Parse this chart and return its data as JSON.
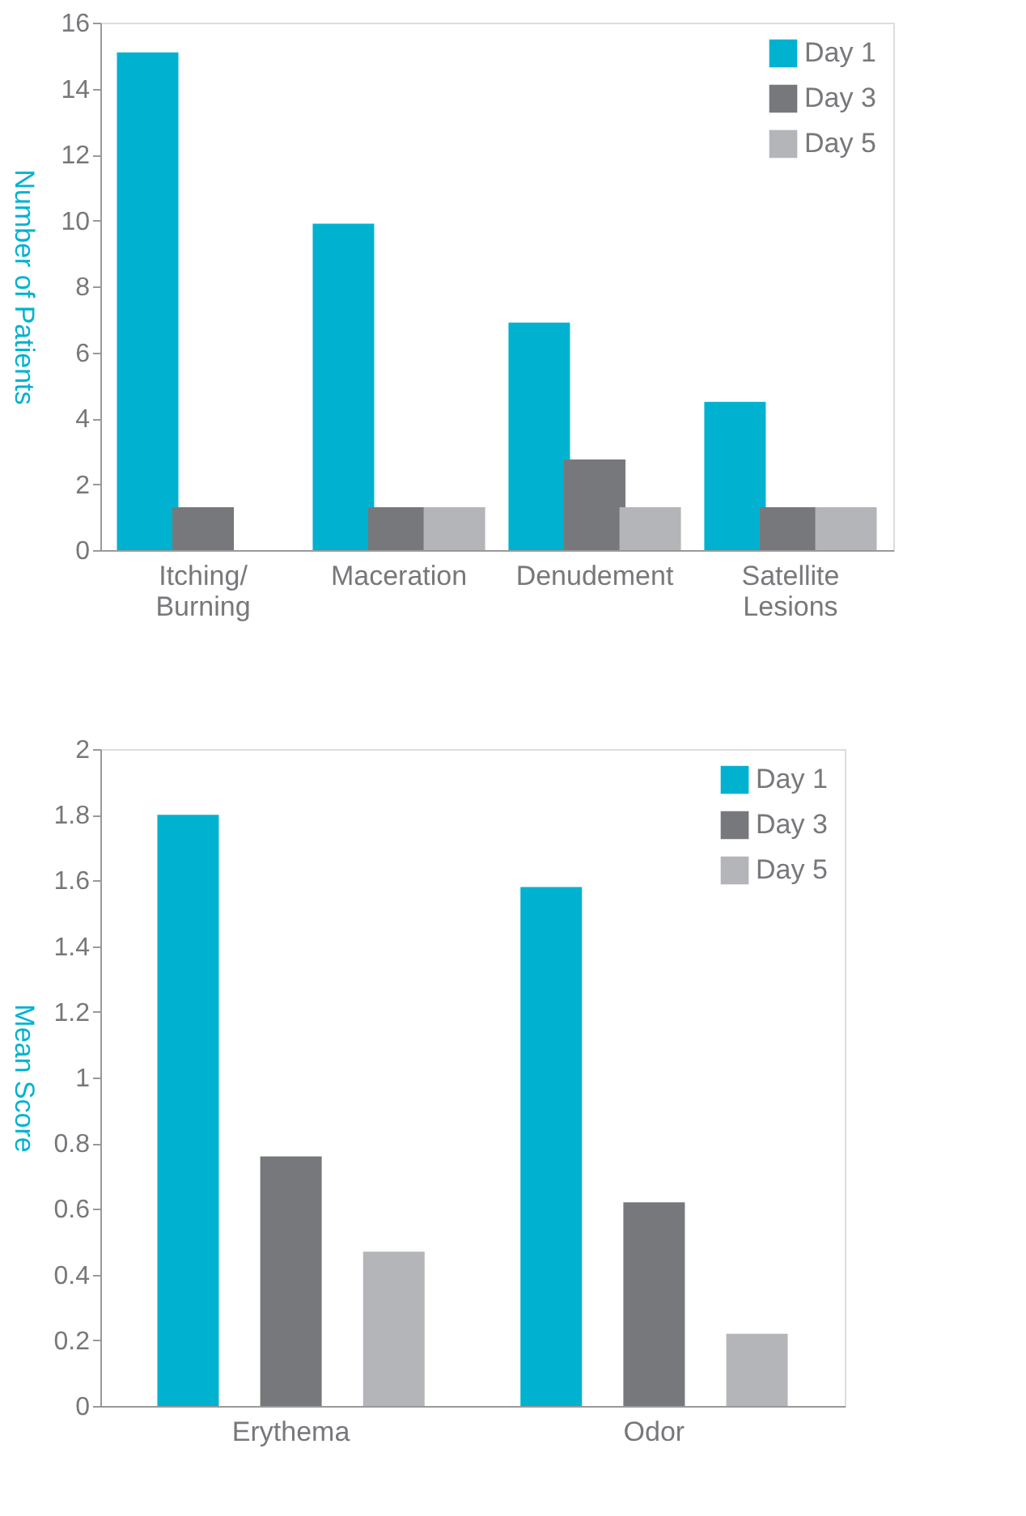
{
  "chart_data": [
    {
      "type": "bar",
      "ylabel": "Number of Patients",
      "categories": [
        "Itching/ Burning",
        "Maceration",
        "Denudement",
        "Satellite Lesions"
      ],
      "series": [
        {
          "name": "Day 1",
          "color": "#00b2cf",
          "values": [
            15.1,
            9.9,
            6.9,
            4.5
          ]
        },
        {
          "name": "Day 3",
          "color": "#77787b",
          "values": [
            1.3,
            1.3,
            2.75,
            1.3
          ]
        },
        {
          "name": "Day 5",
          "color": "#b4b5b8",
          "values": [
            null,
            1.3,
            1.3,
            1.3
          ]
        }
      ],
      "ylim": [
        0,
        16
      ],
      "yticks": [
        0,
        2,
        4,
        6,
        8,
        10,
        12,
        14,
        16
      ],
      "grid": false,
      "legend": "top right"
    },
    {
      "type": "bar",
      "ylabel": "Mean Score",
      "categories": [
        "Erythema",
        "Odor"
      ],
      "series": [
        {
          "name": "Day 1",
          "color": "#00b2cf",
          "values": [
            1.8,
            1.58
          ]
        },
        {
          "name": "Day 3",
          "color": "#77787b",
          "values": [
            0.76,
            0.62
          ]
        },
        {
          "name": "Day 5",
          "color": "#b4b5b8",
          "values": [
            0.47,
            0.22
          ]
        }
      ],
      "ylim": [
        0,
        2
      ],
      "yticks": [
        0,
        0.2,
        0.4,
        0.6,
        0.8,
        1,
        1.2,
        1.4,
        1.6,
        1.8,
        2
      ],
      "grid": false,
      "legend": "top right"
    }
  ]
}
